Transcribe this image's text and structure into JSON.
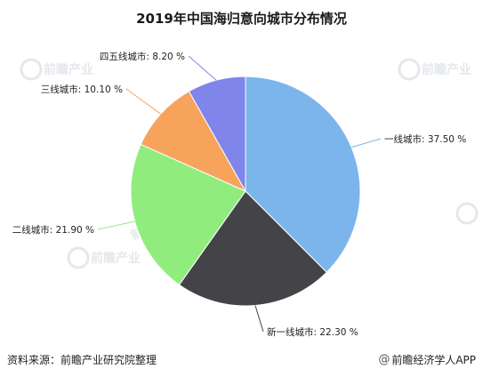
{
  "chart_data": {
    "type": "pie",
    "title": "2019年中国海归意向城市分布情况",
    "slices": [
      {
        "name": "一线城市",
        "value": 37.5,
        "label": "一线城市: 37.50 %",
        "color": "#7cb5ec"
      },
      {
        "name": "新一线城市",
        "value": 22.3,
        "label": "新一线城市: 22.30 %",
        "color": "#434348"
      },
      {
        "name": "二线城市",
        "value": 21.9,
        "label": "二线城市: 21.90 %",
        "color": "#90ed7d"
      },
      {
        "name": "三线城市",
        "value": 10.1,
        "label": "三线城市: 10.10 %",
        "color": "#f7a35c"
      },
      {
        "name": "四五线城市",
        "value": 8.2,
        "label": "四五线城市: 8.20 %",
        "color": "#8085e9"
      }
    ],
    "start_angle": "12 o'clock, clockwise",
    "legend": "none"
  },
  "watermark": {
    "text": "前瞻产业",
    "icon": "qianzhan-logo-icon"
  },
  "footer": {
    "source": "资料来源：前瞻产业研究院整理",
    "brand": "前瞻经济学人APP",
    "brand_icon": "weibo-at-icon"
  }
}
